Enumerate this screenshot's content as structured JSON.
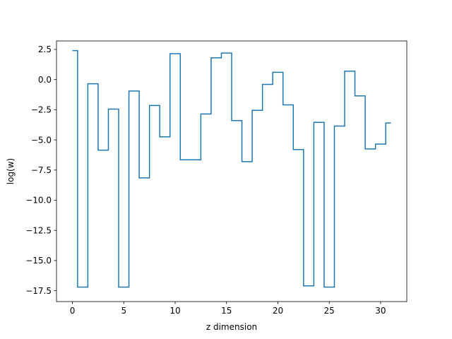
{
  "chart_data": {
    "type": "line",
    "drawstyle": "steps-post",
    "title": "",
    "xlabel": "z dimension",
    "ylabel": "log(w)",
    "xlim": [
      -1.55,
      32.55
    ],
    "ylim": [
      -18.4,
      3.2
    ],
    "xticks": [
      0,
      5,
      10,
      15,
      20,
      25,
      30
    ],
    "xtick_labels": [
      "0",
      "5",
      "10",
      "15",
      "20",
      "25",
      "30"
    ],
    "yticks": [
      2.5,
      0.0,
      -2.5,
      -5.0,
      -7.5,
      -10.0,
      -12.5,
      -15.0,
      -17.5
    ],
    "ytick_labels": [
      "2.5",
      "0.0",
      "−2.5",
      "−5.0",
      "−7.5",
      "−10.0",
      "−12.5",
      "−15.0",
      "−17.5"
    ],
    "grid": false,
    "series": [
      {
        "color": "#1f77b4",
        "x": [
          0,
          0.5,
          1.5,
          2.5,
          3.5,
          4.5,
          5.5,
          6.5,
          7.5,
          8.5,
          9.5,
          10.5,
          11.5,
          12.5,
          13.5,
          14.5,
          15.5,
          16.5,
          17.5,
          18.5,
          19.5,
          20.5,
          21.5,
          22.5,
          23.5,
          24.5,
          25.5,
          26.5,
          27.5,
          28.5,
          29.5,
          30.5,
          31
        ],
        "y": [
          2.4,
          -17.2,
          -0.35,
          -5.85,
          -2.45,
          -17.2,
          -0.95,
          -8.15,
          -2.15,
          -4.75,
          2.15,
          -6.65,
          -6.65,
          -2.85,
          1.8,
          2.2,
          -3.4,
          -6.8,
          -2.55,
          -0.4,
          0.6,
          -2.1,
          -5.8,
          -17.1,
          -3.55,
          -17.2,
          -3.85,
          0.7,
          -1.35,
          -5.75,
          -5.35,
          -3.6,
          -3.6
        ]
      }
    ]
  }
}
